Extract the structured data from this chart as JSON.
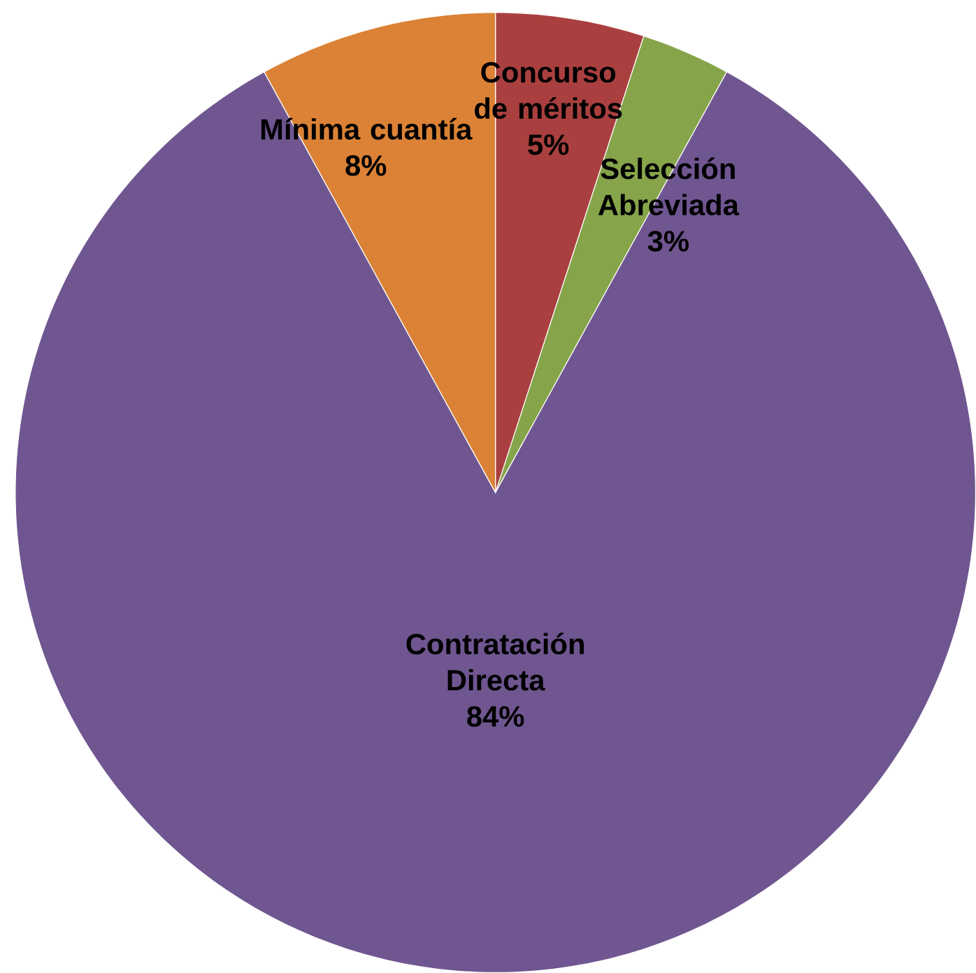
{
  "chart_data": {
    "type": "pie",
    "categories": [
      "Concurso de méritos",
      "Selección Abreviada",
      "Contratación Directa",
      "Mínima cuantía"
    ],
    "values": [
      5,
      3,
      84,
      8
    ],
    "value_labels": [
      "5%",
      "3%",
      "84%",
      "8%"
    ],
    "colors": [
      "#a9403f",
      "#86a44a",
      "#6f5690",
      "#db8236"
    ]
  }
}
